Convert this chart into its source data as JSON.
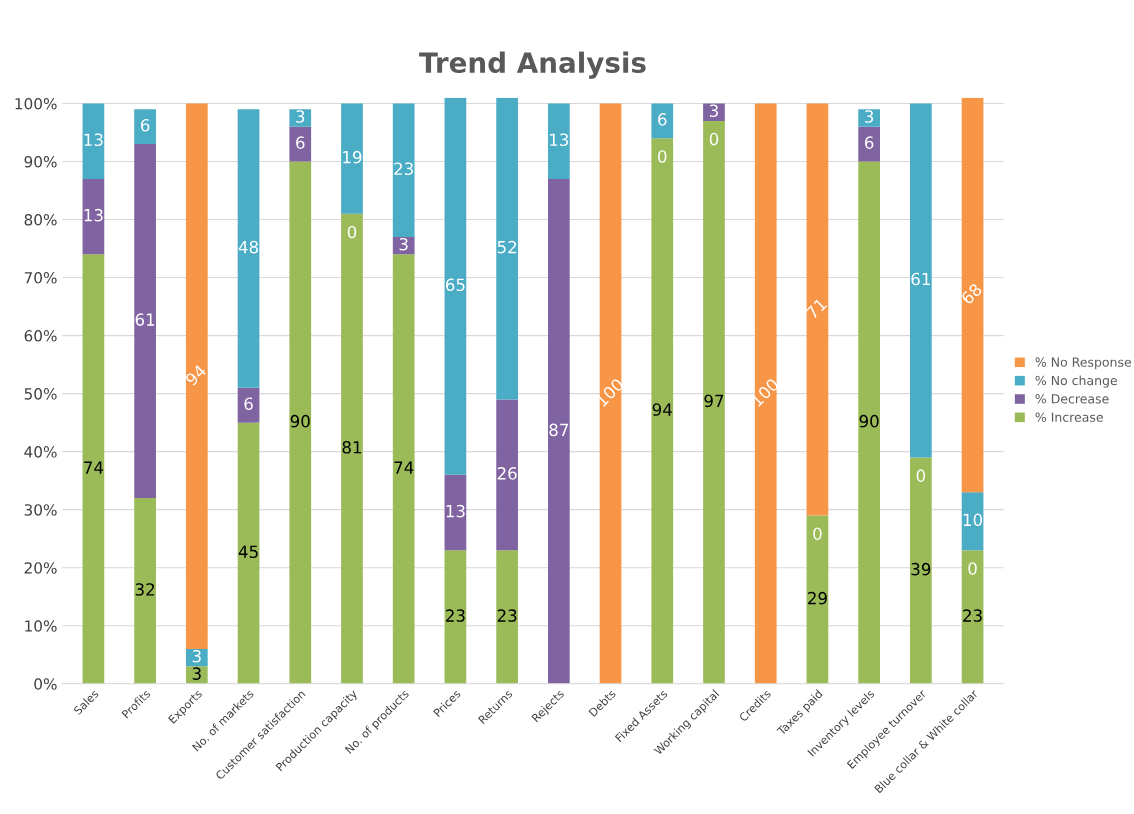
{
  "chart_data": {
    "type": "bar",
    "title": "Trend Analysis",
    "stacked": true,
    "categories": [
      "Sales",
      "Profits",
      "Exports",
      "No. of markets",
      "Customer satisfaction",
      "Production capacity",
      "No. of products",
      "Prices",
      "Returns",
      "Rejects",
      "Debts",
      "Fixed Assets",
      "Working capital",
      "Credits",
      "Taxes paid",
      "Inventory levels",
      "Employee turnover",
      "Blue collar & White collar"
    ],
    "series": [
      {
        "name": "% Increase",
        "color": "#9bbb59",
        "values": [
          74,
          32,
          3,
          45,
          90,
          81,
          74,
          23,
          23,
          0,
          0,
          94,
          97,
          0,
          29,
          90,
          39,
          23
        ],
        "value_labels": [
          "74",
          "32",
          "3",
          "45",
          "90",
          "81",
          "74",
          "23",
          "23",
          null,
          null,
          "94",
          "97",
          null,
          "29",
          "90",
          "39",
          "23"
        ]
      },
      {
        "name": "% Decrease",
        "color": "#8064a2",
        "values": [
          13,
          61,
          0,
          6,
          6,
          0,
          3,
          13,
          26,
          87,
          0,
          0,
          3,
          0,
          0,
          6,
          0,
          0
        ],
        "value_labels": [
          "13",
          "61",
          null,
          "6",
          "6",
          null,
          "3",
          "13",
          "26",
          "87",
          null,
          null,
          "3",
          null,
          null,
          "6",
          null,
          null
        ]
      },
      {
        "name": "% No change",
        "color": "#4bacc6",
        "values": [
          13,
          6,
          3,
          48,
          3,
          19,
          23,
          65,
          52,
          13,
          0,
          6,
          0,
          0,
          0,
          3,
          61,
          10
        ],
        "value_labels": [
          "13",
          "6",
          "3",
          "48",
          "3",
          "19",
          "23",
          "65",
          "52",
          "13",
          null,
          "6",
          null,
          null,
          null,
          "3",
          "61",
          "10"
        ]
      },
      {
        "name": "% No Response",
        "color": "#f79646",
        "values": [
          0,
          0,
          94,
          0,
          0,
          0,
          0,
          0,
          0,
          0,
          100,
          0,
          0,
          100,
          71,
          0,
          0,
          68
        ],
        "value_labels": [
          null,
          null,
          "94",
          null,
          null,
          null,
          null,
          null,
          null,
          null,
          "100",
          null,
          null,
          "100",
          "71",
          null,
          null,
          "68"
        ]
      }
    ],
    "annotations": [
      {
        "text": "0",
        "x": "Production capacity",
        "y": 81
      },
      {
        "text": "0",
        "x": "Fixed Assets",
        "y": 94
      },
      {
        "text": "0",
        "x": "Working capital",
        "y": 97
      },
      {
        "text": "0",
        "x": "Taxes paid",
        "y": 29
      },
      {
        "text": "0",
        "x": "Employee turnover",
        "y": 39
      },
      {
        "text": "0",
        "x": "Blue collar & White collar",
        "y": 23
      }
    ],
    "ylim": [
      0,
      101
    ],
    "yticks": [
      {
        "value": 0,
        "label": "0%"
      },
      {
        "value": 10,
        "label": "10%"
      },
      {
        "value": 20,
        "label": "20%"
      },
      {
        "value": 30,
        "label": "30%"
      },
      {
        "value": 40,
        "label": "40%"
      },
      {
        "value": 50,
        "label": "50%"
      },
      {
        "value": 60,
        "label": "60%"
      },
      {
        "value": 70,
        "label": "70%"
      },
      {
        "value": 80,
        "label": "80%"
      },
      {
        "value": 90,
        "label": "90%"
      },
      {
        "value": 100,
        "label": "100%"
      }
    ],
    "grid": "y",
    "legend": "right"
  }
}
